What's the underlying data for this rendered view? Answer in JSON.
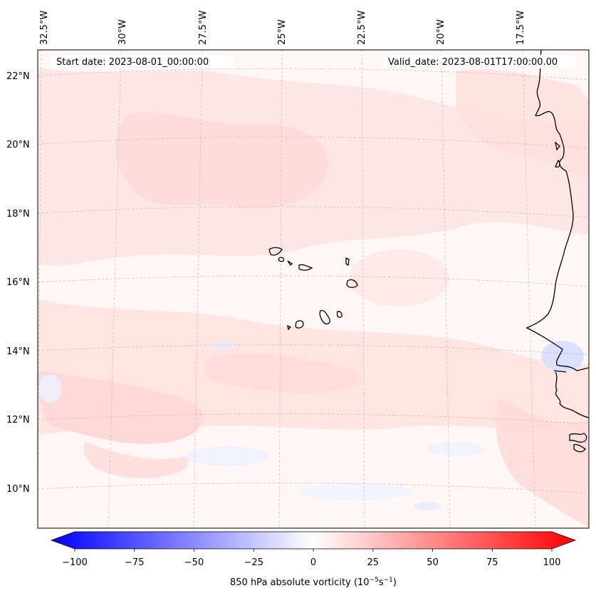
{
  "map": {
    "title_left": "Start date: 2023-08-01_00:00:00",
    "title_right": "Valid_date: 2023-08-01T17:00:00.00",
    "lon_labels": [
      "32.5°W",
      "30°W",
      "27.5°W",
      "25°W",
      "22.5°W",
      "20°W",
      "17.5°W"
    ],
    "lat_labels": [
      "22°N",
      "20°N",
      "18°N",
      "16°N",
      "14°N",
      "12°N",
      "10°N"
    ],
    "field": "850 hPa absolute vorticity",
    "colors": {
      "coast": "#000000",
      "grid": "#b0b0b0",
      "pos": "#ff0000",
      "neg": "#0000ff"
    }
  },
  "colorbar": {
    "ticks": [
      "−100",
      "−75",
      "−50",
      "−25",
      "0",
      "25",
      "50",
      "75",
      "100"
    ],
    "label_main": "850 hPa absolute vorticity (10",
    "label_exp1": "−5",
    "label_mid": "s",
    "label_exp2": "−1",
    "label_end": ")",
    "min": -100,
    "max": 100
  }
}
